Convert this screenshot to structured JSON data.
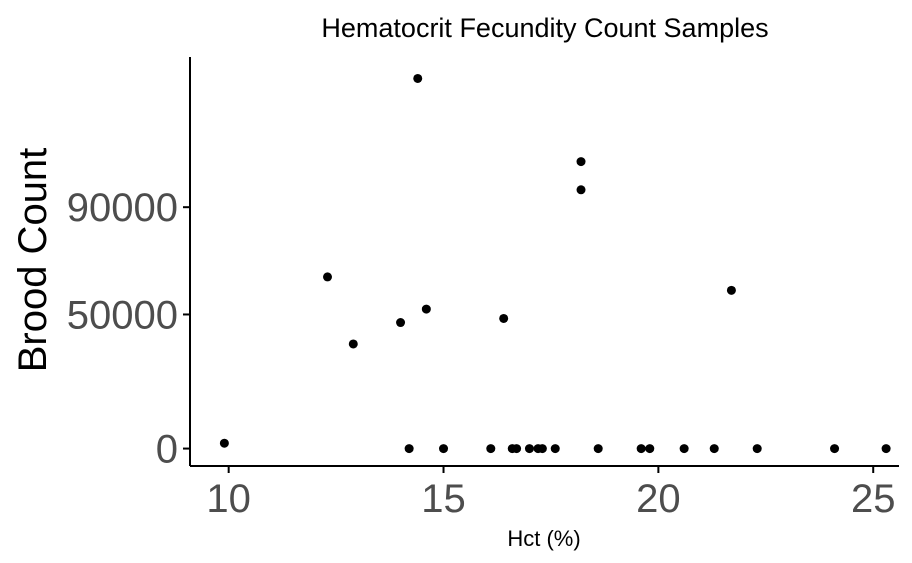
{
  "chart_data": {
    "type": "scatter",
    "title": "Hematocrit Fecundity Count Samples",
    "xlabel": "Hct (%)",
    "ylabel": "Brood Count",
    "xlim": [
      9.1,
      25.6
    ],
    "ylim": [
      -6500,
      146000
    ],
    "x_ticks": [
      10,
      15,
      20,
      25
    ],
    "y_ticks": [
      0,
      50000,
      90000
    ],
    "grid": false,
    "point_color": "#000000",
    "points": [
      {
        "x": 9.9,
        "y": 2000
      },
      {
        "x": 12.3,
        "y": 64000
      },
      {
        "x": 12.9,
        "y": 39000
      },
      {
        "x": 14.0,
        "y": 47000
      },
      {
        "x": 14.2,
        "y": 0
      },
      {
        "x": 14.4,
        "y": 138000
      },
      {
        "x": 14.6,
        "y": 52000
      },
      {
        "x": 15.0,
        "y": 0
      },
      {
        "x": 16.1,
        "y": 0
      },
      {
        "x": 16.4,
        "y": 48500
      },
      {
        "x": 16.6,
        "y": 0
      },
      {
        "x": 16.7,
        "y": 0
      },
      {
        "x": 17.0,
        "y": 0
      },
      {
        "x": 17.2,
        "y": 0
      },
      {
        "x": 17.3,
        "y": 0
      },
      {
        "x": 17.6,
        "y": 0
      },
      {
        "x": 18.2,
        "y": 107000
      },
      {
        "x": 18.2,
        "y": 96500
      },
      {
        "x": 18.6,
        "y": 0
      },
      {
        "x": 19.6,
        "y": 0
      },
      {
        "x": 19.8,
        "y": 0
      },
      {
        "x": 20.6,
        "y": 0
      },
      {
        "x": 21.3,
        "y": 0
      },
      {
        "x": 21.7,
        "y": 59000
      },
      {
        "x": 22.3,
        "y": 0
      },
      {
        "x": 24.1,
        "y": 0
      },
      {
        "x": 25.3,
        "y": 0
      }
    ]
  }
}
